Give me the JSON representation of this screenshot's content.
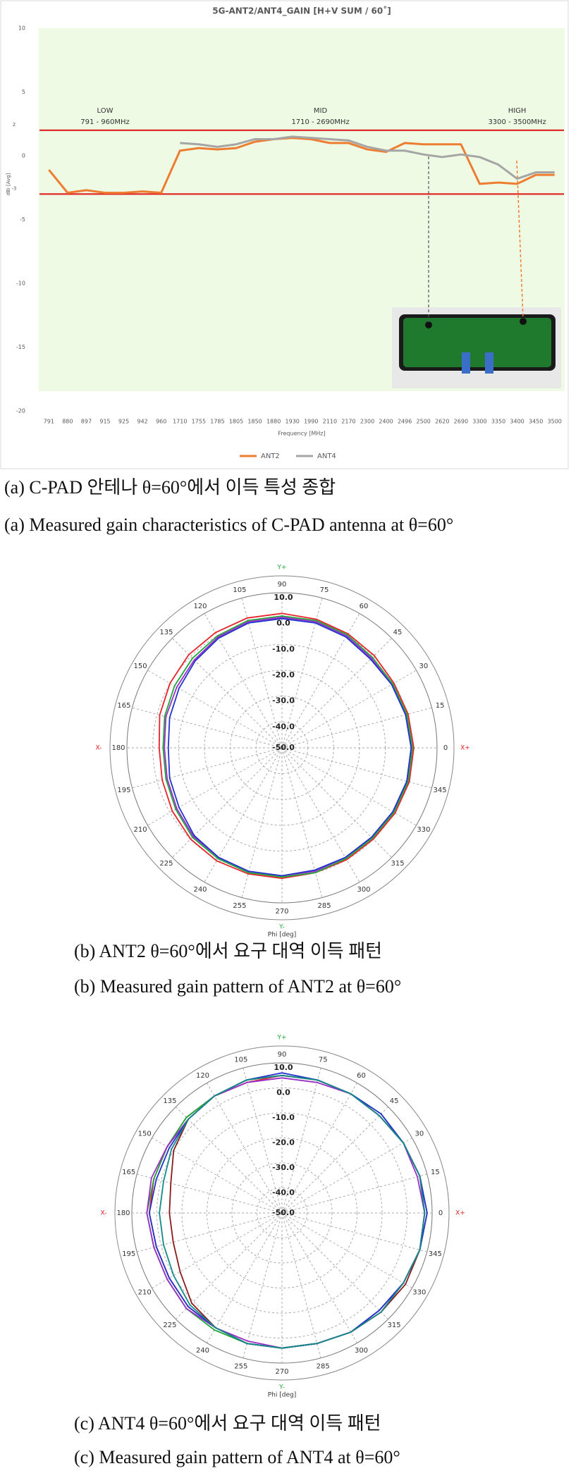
{
  "chart_data": [
    {
      "type": "line",
      "title": "5G-ANT2/ANT4_GAIN  [H+V SUM / 60˚]",
      "x_label": "Frequency [MHz]",
      "y_label": "dBi [Avg]",
      "categories": [
        "791",
        "880",
        "897",
        "915",
        "925",
        "942",
        "960",
        "1710",
        "1755",
        "1785",
        "1805",
        "1850",
        "1880",
        "1930",
        "1990",
        "2110",
        "2170",
        "2300",
        "2400",
        "2496",
        "2500",
        "2620",
        "2690",
        "3300",
        "3350",
        "3400",
        "3450",
        "3500"
      ],
      "series": [
        {
          "name": "ANT2",
          "color": "#ed7d31",
          "values": [
            -1.1,
            -2.9,
            -2.7,
            -2.9,
            -2.9,
            -2.8,
            -2.9,
            0.4,
            0.6,
            0.5,
            0.6,
            1.1,
            1.3,
            1.4,
            1.3,
            1.0,
            1.0,
            0.5,
            0.3,
            1.0,
            0.9,
            0.9,
            0.9,
            -2.2,
            -2.1,
            -2.2,
            -1.5,
            -1.5
          ]
        },
        {
          "name": "ANT4",
          "color": "#a5a5a5",
          "values": [
            null,
            null,
            null,
            null,
            null,
            null,
            null,
            1.0,
            0.9,
            0.7,
            0.9,
            1.3,
            1.3,
            1.5,
            1.4,
            1.3,
            1.2,
            0.7,
            0.4,
            0.4,
            0.1,
            -0.1,
            0.1,
            -0.1,
            -0.7,
            -1.8,
            -1.3,
            -1.3
          ]
        }
      ],
      "ylim": [
        -20,
        10
      ],
      "yticks": [
        -20,
        -15,
        -10,
        -5,
        0,
        5,
        10
      ],
      "grid": false,
      "ref_lines": [
        {
          "value": 2,
          "label": "2"
        },
        {
          "value": -3,
          "label": "-3"
        }
      ],
      "ref_color": "#e02020",
      "bands": [
        {
          "name": "LOW",
          "range": "791 - 960MHz"
        },
        {
          "name": "MID",
          "range": "1710 - 2690MHz"
        },
        {
          "name": "HIGH",
          "range": "3300 - 3500MHz"
        }
      ],
      "band_color": "#eefae3",
      "legend": "bottom",
      "caption": [
        "(a) C-PAD 안테나 θ=60°에서 이득 특성 종합",
        "(a) Measured gain characteristics of C-PAD antenna at θ=60°"
      ]
    },
    {
      "type": "polar",
      "theta": [
        0,
        15,
        30,
        45,
        60,
        75,
        90,
        105,
        120,
        135,
        150,
        165,
        180,
        195,
        210,
        225,
        240,
        255,
        270,
        285,
        300,
        315,
        330,
        345
      ],
      "rlim": [
        -50,
        10
      ],
      "rticks": [
        {
          "value": -50,
          "label": "-50.0"
        },
        {
          "value": -40,
          "label": "-40.0"
        },
        {
          "value": -30,
          "label": "-30.0"
        },
        {
          "value": -20,
          "label": "-20.0"
        },
        {
          "value": -10,
          "label": "-10.0"
        },
        {
          "value": 0,
          "label": "0.0"
        },
        {
          "value": 10,
          "label": "10.0"
        }
      ],
      "axis_names": [
        "X+",
        "Y+",
        "X-",
        "Y-"
      ],
      "theta_label": "Phi [deg]",
      "series": [
        {
          "color": "#e8232a",
          "values": [
            1,
            0.5,
            0,
            0.5,
            1,
            1.5,
            2,
            2,
            1.5,
            1,
            0,
            -1,
            -2.5,
            -2,
            -1,
            0,
            0.5,
            0.5,
            0.5,
            0,
            0,
            0,
            0.5,
            1
          ]
        },
        {
          "color": "#1fa83a",
          "values": [
            0.5,
            0,
            -0.5,
            -0.5,
            0.5,
            1,
            1,
            1,
            0,
            -1,
            -2,
            -3,
            -4,
            -3.5,
            -2.5,
            -1,
            -0.5,
            0,
            0,
            0,
            -0.5,
            -0.5,
            0,
            0.5
          ]
        },
        {
          "color": "#9b30c8",
          "values": [
            0,
            -0.5,
            -1,
            -1,
            0,
            0.5,
            0.5,
            0.5,
            -0.5,
            -2,
            -3,
            -3.5,
            -4.5,
            -4,
            -3,
            -1.5,
            -1,
            -0.5,
            -0.5,
            -0.5,
            -1,
            -1,
            -0.5,
            0
          ]
        },
        {
          "color": "#2233cc",
          "values": [
            0,
            -0.5,
            -1,
            -1.5,
            -0.5,
            0,
            0,
            0,
            -1,
            -2.5,
            -4,
            -5,
            -6,
            -5,
            -4,
            -2,
            -1,
            -0.5,
            -0.5,
            -1,
            -1,
            -1,
            -0.5,
            0
          ]
        }
      ],
      "caption": [
        "(b) ANT2 θ=60°에서 요구 대역 이득 패턴",
        "(b) Measured gain pattern of ANT2 at θ=60°"
      ]
    },
    {
      "type": "polar",
      "theta": [
        0,
        15,
        30,
        45,
        60,
        75,
        90,
        105,
        120,
        135,
        150,
        165,
        180,
        195,
        210,
        225,
        240,
        255,
        270,
        285,
        300,
        315,
        330,
        345
      ],
      "rlim": [
        -50,
        10
      ],
      "rticks": [
        {
          "value": -50,
          "label": "-50.0"
        },
        {
          "value": -40,
          "label": "-40.0"
        },
        {
          "value": -30,
          "label": "-30.0"
        },
        {
          "value": -20,
          "label": "-20.0"
        },
        {
          "value": -10,
          "label": "-10.0"
        },
        {
          "value": 0,
          "label": "0.0"
        },
        {
          "value": 10,
          "label": "10.0"
        }
      ],
      "axis_names": [
        "X+",
        "Y+",
        "X-",
        "Y-"
      ],
      "theta_label": "Phi [deg]",
      "series": [
        {
          "color": "#8b1a1a",
          "values": [
            7,
            7,
            6,
            5,
            5,
            5,
            5,
            5,
            4,
            3,
            0,
            -4,
            -5,
            -5,
            -3,
            1,
            3,
            4,
            4,
            4,
            5,
            6,
            7,
            7
          ]
        },
        {
          "color": "#e8232a",
          "values": [
            7,
            7,
            6,
            5,
            5,
            5,
            5,
            4,
            4,
            4,
            3,
            3,
            3,
            2,
            2,
            3,
            3,
            4,
            4,
            4,
            5,
            6,
            6,
            7
          ]
        },
        {
          "color": "#1fa83a",
          "values": [
            8,
            7,
            6,
            6,
            5,
            5,
            5,
            5,
            4,
            4,
            3,
            3,
            4,
            3,
            3,
            4,
            4,
            4,
            4,
            4,
            5,
            5,
            6,
            7
          ]
        },
        {
          "color": "#9b30c8",
          "values": [
            7,
            6,
            6,
            5,
            5,
            4,
            4,
            4,
            4,
            3,
            3,
            4,
            4,
            3,
            3,
            4,
            3,
            3,
            4,
            4,
            5,
            5,
            6,
            7
          ]
        },
        {
          "color": "#2233cc",
          "values": [
            8,
            7,
            6,
            6,
            5,
            5,
            6,
            5,
            4,
            3,
            2,
            2,
            3,
            2,
            2,
            3,
            3,
            4,
            4,
            4,
            5,
            5,
            6,
            7
          ]
        },
        {
          "color": "#138a8a",
          "values": [
            7,
            7,
            6,
            5,
            5,
            5,
            5,
            5,
            4,
            3,
            1,
            -1,
            -1,
            -1,
            0,
            2,
            3,
            4,
            4,
            4,
            5,
            6,
            6,
            7
          ]
        }
      ],
      "caption": [
        "(c) ANT4 θ=60°에서 요구 대역 이득 패턴",
        "(c) Measured gain pattern of ANT4 at θ=60°"
      ]
    }
  ]
}
